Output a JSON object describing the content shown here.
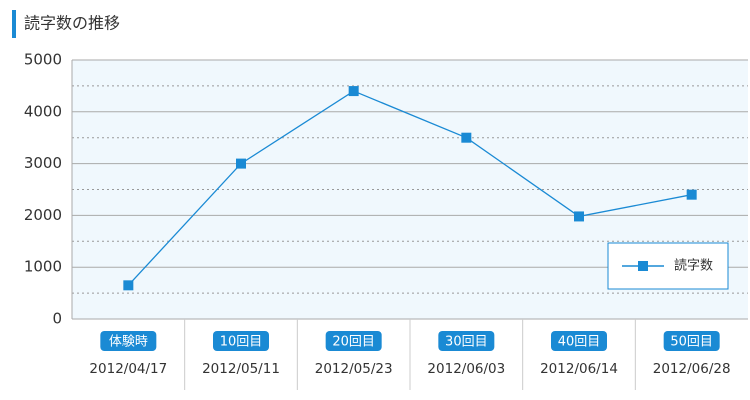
{
  "chart_data": {
    "type": "line",
    "title": "読字数の推移",
    "categories": [
      "体験時",
      "10回目",
      "20回目",
      "30回目",
      "40回目",
      "50回目"
    ],
    "dates": [
      "2012/04/17",
      "2012/05/11",
      "2012/05/23",
      "2012/06/03",
      "2012/06/14",
      "2012/06/28"
    ],
    "series": [
      {
        "name": "読字数",
        "color": "#1a8ad4",
        "values": [
          650,
          3000,
          4400,
          3500,
          1980,
          2400
        ]
      }
    ],
    "ylim": [
      0,
      5000
    ],
    "yticks": [
      0,
      1000,
      2000,
      3000,
      4000,
      5000
    ],
    "minor_yticks": [
      500,
      1500,
      2500,
      3500,
      4500
    ],
    "grid": true,
    "legend": "lower right",
    "badge_color": "#1a8ad4"
  }
}
